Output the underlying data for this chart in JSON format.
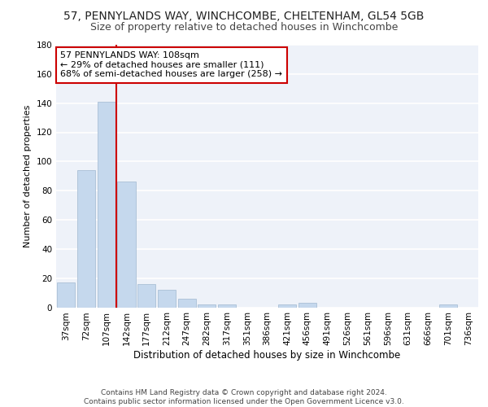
{
  "title1": "57, PENNYLANDS WAY, WINCHCOMBE, CHELTENHAM, GL54 5GB",
  "title2": "Size of property relative to detached houses in Winchcombe",
  "xlabel": "Distribution of detached houses by size in Winchcombe",
  "ylabel": "Number of detached properties",
  "categories": [
    "37sqm",
    "72sqm",
    "107sqm",
    "142sqm",
    "177sqm",
    "212sqm",
    "247sqm",
    "282sqm",
    "317sqm",
    "351sqm",
    "386sqm",
    "421sqm",
    "456sqm",
    "491sqm",
    "526sqm",
    "561sqm",
    "596sqm",
    "631sqm",
    "666sqm",
    "701sqm",
    "736sqm"
  ],
  "values": [
    17,
    94,
    141,
    86,
    16,
    12,
    6,
    2,
    2,
    0,
    0,
    2,
    3,
    0,
    0,
    0,
    0,
    0,
    0,
    2,
    0
  ],
  "bar_color": "#c5d8ed",
  "bar_edgecolor": "#a0b8d0",
  "vline_color": "#cc0000",
  "annotation_text": "57 PENNYLANDS WAY: 108sqm\n← 29% of detached houses are smaller (111)\n68% of semi-detached houses are larger (258) →",
  "annotation_box_facecolor": "#ffffff",
  "annotation_box_edgecolor": "#cc0000",
  "ylim": [
    0,
    180
  ],
  "yticks": [
    0,
    20,
    40,
    60,
    80,
    100,
    120,
    140,
    160,
    180
  ],
  "footnote": "Contains HM Land Registry data © Crown copyright and database right 2024.\nContains public sector information licensed under the Open Government Licence v3.0.",
  "bg_color": "#eef2f9",
  "grid_color": "#ffffff",
  "title1_fontsize": 10,
  "title2_fontsize": 9,
  "xlabel_fontsize": 8.5,
  "ylabel_fontsize": 8,
  "tick_fontsize": 7.5,
  "annotation_fontsize": 8,
  "footnote_fontsize": 6.5
}
